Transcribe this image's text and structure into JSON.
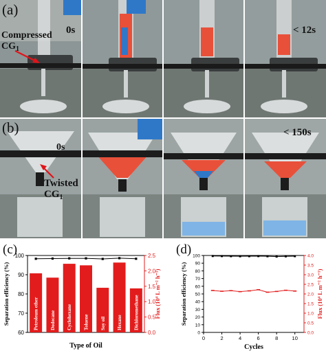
{
  "panel_a": {
    "letter": "(a)",
    "time_start": "0s",
    "time_end": "< 12s",
    "label_line1": "Compressed",
    "label_line2": "CG",
    "label_sub": "1",
    "colors": {
      "oil_red": "#e8503a",
      "water_blue": "#2f78c8",
      "arrow": "#e0141a"
    }
  },
  "panel_b": {
    "letter": "(b)",
    "time_start": "0s",
    "time_end": "< 150s",
    "label_line1": "Twisted",
    "label_line2": "CG",
    "label_sub": "1"
  },
  "chart_data": [
    {
      "panel": "(c)",
      "type": "bar",
      "categories": [
        "Petroleum ether",
        "Dodecane",
        "Cyclohexane",
        "Toluene",
        "Soy oil",
        "Hexane",
        "Dichloromethane"
      ],
      "xlabel": "Type of Oil",
      "ylabel": "Separation efficiency (%)",
      "ylim": [
        60,
        100
      ],
      "yticks": [
        "60",
        "70",
        "80",
        "90",
        "100"
      ],
      "series": [
        {
          "axis": "left",
          "kind": "line",
          "color": "#000000",
          "values": [
            98.3,
            98.4,
            98.5,
            98.5,
            98.2,
            98.6,
            98.3
          ]
        },
        {
          "axis": "right",
          "kind": "bar",
          "color": "#e21c1c",
          "values": [
            1.92,
            1.78,
            2.23,
            2.18,
            1.45,
            2.27,
            1.43
          ]
        }
      ],
      "y2label": "Flux (10⁴ L m⁻² h⁻¹)",
      "y2lim": [
        0,
        2.5
      ],
      "y2ticks": [
        "0.0",
        "0.5",
        "1.0",
        "1.5",
        "2.0",
        "2.5"
      ],
      "y2color": "#e21c1c"
    },
    {
      "panel": "(d)",
      "type": "line",
      "x": [
        1,
        2,
        3,
        4,
        5,
        6,
        7,
        8,
        9,
        10
      ],
      "xlabel": "Cycles",
      "ylabel": "Separation efficiency (%)",
      "ylim": [
        0,
        100
      ],
      "yticks": [
        "0",
        "10",
        "20",
        "30",
        "40",
        "50",
        "60",
        "70",
        "80",
        "90",
        "100"
      ],
      "xticks": [
        "0",
        "2",
        "4",
        "6",
        "8",
        "10"
      ],
      "series": [
        {
          "axis": "left",
          "color": "#000000",
          "marker": "square",
          "values": [
            99.3,
            99.2,
            99.1,
            99.0,
            99.1,
            99.2,
            99.0,
            98.6,
            98.9,
            99.1
          ]
        },
        {
          "axis": "right",
          "color": "#e21c1c",
          "marker": "dash",
          "values": [
            2.18,
            2.14,
            2.17,
            2.12,
            2.16,
            2.22,
            2.09,
            2.13,
            2.19,
            2.15
          ]
        }
      ],
      "y2label": "Flux (10⁴ L m⁻² h⁻¹)",
      "y2lim": [
        0,
        4.0
      ],
      "y2ticks": [
        "0.0",
        "0.5",
        "1.0",
        "1.5",
        "2.0",
        "2.5",
        "3.0",
        "3.5",
        "4.0"
      ],
      "y2color": "#e21c1c"
    }
  ]
}
